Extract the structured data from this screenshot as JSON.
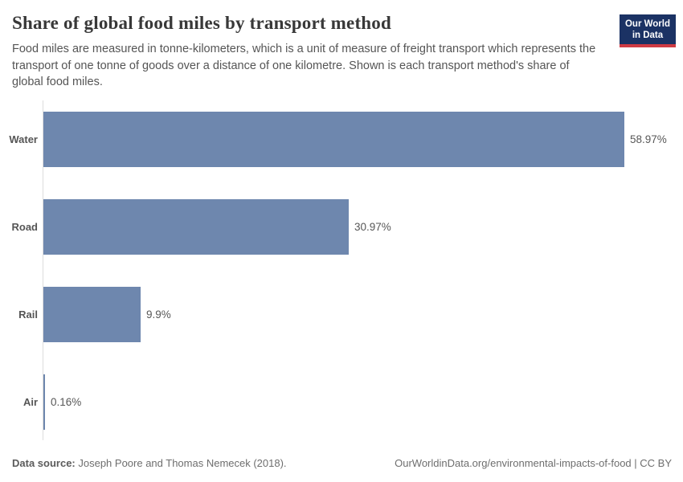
{
  "header": {
    "title": "Share of global food miles by transport method",
    "subtitle": "Food miles are measured in tonne-kilometers, which is a unit of measure of freight transport which represents the transport of one tonne of goods over a distance of one kilometre. Shown is each transport method's share of global food miles.",
    "logo": {
      "line1": "Our World",
      "line2": "in Data",
      "bg_color": "#1b3264",
      "accent_color": "#cf3b44"
    }
  },
  "chart_data": {
    "type": "bar",
    "orientation": "horizontal",
    "title": "Share of global food miles by transport method",
    "categories": [
      "Water",
      "Road",
      "Rail",
      "Air"
    ],
    "values": [
      58.97,
      30.97,
      9.9,
      0.16
    ],
    "value_labels": [
      "58.97%",
      "30.97%",
      "9.9%",
      "0.16%"
    ],
    "xlim": [
      0,
      58.97
    ],
    "bar_color": "#6e87ae",
    "axis_color": "#dddddd",
    "grid": false,
    "legend": false
  },
  "footer": {
    "source_label": "Data source:",
    "source_text": " Joseph Poore and Thomas Nemecek (2018).",
    "link_text": "OurWorldinData.org/environmental-impacts-of-food | CC BY"
  }
}
